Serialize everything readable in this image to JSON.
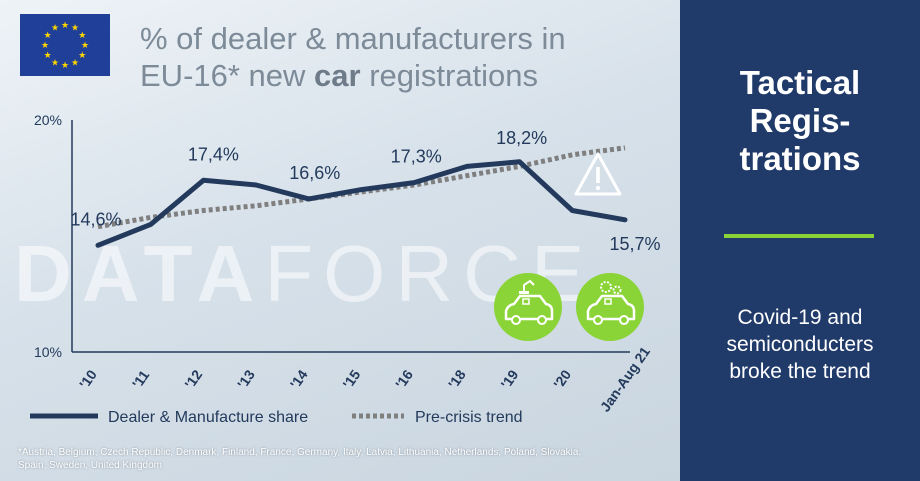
{
  "title": {
    "line1": "% of dealer & manufacturers in",
    "line2_pre": "EU-16* new ",
    "line2_bold": "car",
    "line2_post": " registrations"
  },
  "watermark": {
    "bold": "DATA",
    "thin": "FORCE"
  },
  "side_panel": {
    "title_lines": [
      "Tactical",
      "Regis-",
      "trations"
    ],
    "subtitle_lines": [
      "Covid-19 and",
      "semiconducters",
      "broke the trend"
    ],
    "colors": {
      "background": "#203a6a",
      "accent_bar": "#8bd437",
      "text": "#ffffff"
    }
  },
  "footnote_lines": [
    "*Austria, Belgium, Czech Republic, Denmark, Finland, France, Germany, Italy, Latvia, Lithuania, Netherlands, Poland, Slovakia,",
    "Spain, Sweden, United Kingdom"
  ],
  "icons": {
    "flag": "eu-flag-icon",
    "warning": "warning-triangle-icon",
    "car_factory": "car-production-icon",
    "car_chip": "car-semiconductor-icon",
    "badge_color": "#8bd437"
  },
  "chart_data": {
    "type": "line",
    "categories": [
      "'10",
      "'11",
      "'12",
      "'13",
      "'14",
      "'15",
      "'16",
      "'18",
      "'19",
      "'20",
      "Jan-Aug 21"
    ],
    "ylim": [
      10,
      20
    ],
    "y_ticks": [
      "20%",
      "10%"
    ],
    "y_tick_values": [
      20,
      10
    ],
    "series": [
      {
        "name": "Dealer & Manufacture share",
        "color": "#233a5c",
        "style": "solid",
        "values": [
          14.6,
          15.5,
          17.4,
          17.2,
          16.6,
          17.0,
          17.3,
          18.0,
          18.2,
          16.1,
          15.7
        ]
      },
      {
        "name": "Pre-crisis trend",
        "color": "#7f7f7f",
        "style": "dotted",
        "values": [
          15.4,
          15.8,
          16.1,
          16.3,
          16.6,
          16.9,
          17.2,
          17.6,
          18.0,
          18.5,
          18.8
        ]
      }
    ],
    "labels": [
      {
        "index": 0,
        "text": "14,6%"
      },
      {
        "index": 2,
        "text": "17,4%"
      },
      {
        "index": 4,
        "text": "16,6%"
      },
      {
        "index": 6,
        "text": "17,3%"
      },
      {
        "index": 8,
        "text": "18,2%"
      },
      {
        "index": 10,
        "text": "15,7%"
      }
    ],
    "legend_position": "bottom",
    "grid": false
  }
}
